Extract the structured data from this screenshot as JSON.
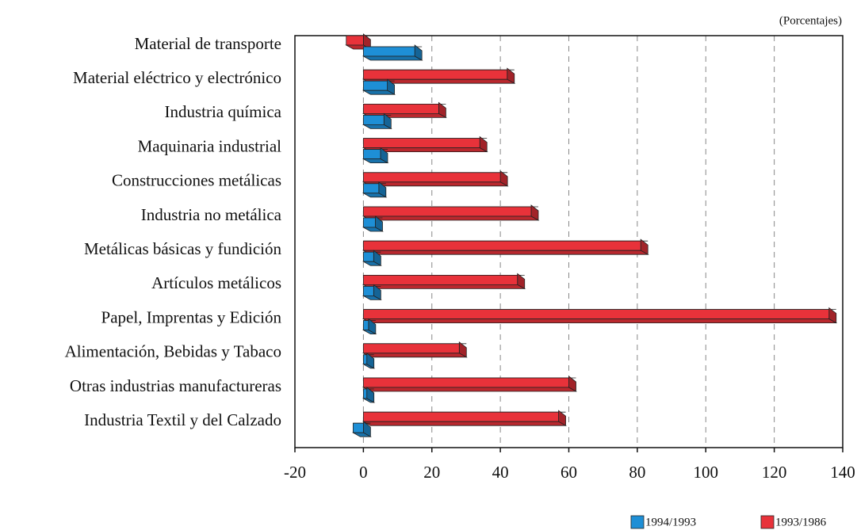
{
  "chart_data": {
    "type": "barh",
    "annotation": "(Porcentajes)",
    "categories": [
      "Material de transporte",
      "Material eléctrico y electrónico",
      "Industria química",
      "Maquinaria industrial",
      "Construcciones metálicas",
      "Industria no metálica",
      "Metálicas básicas y fundición",
      "Artículos metálicos",
      "Papel, Imprentas y Edición",
      "Alimentación, Bebidas y Tabaco",
      "Otras industrias manufactureras",
      "Industria Textil y del Calzado"
    ],
    "series": [
      {
        "name": "1994/1993",
        "color": "#1e8fd6",
        "values": [
          15,
          7,
          6,
          5,
          4.5,
          3.5,
          3,
          3,
          1.5,
          1,
          1,
          -3
        ]
      },
      {
        "name": "1993/1986",
        "color": "#e8323a",
        "values": [
          -5,
          42,
          22,
          34,
          40,
          49,
          81,
          45,
          136,
          28,
          60,
          57
        ]
      }
    ],
    "xlim": [
      -20,
      140
    ],
    "xticks": [
      -20,
      0,
      20,
      40,
      60,
      80,
      100,
      120,
      140
    ],
    "grid": true
  }
}
